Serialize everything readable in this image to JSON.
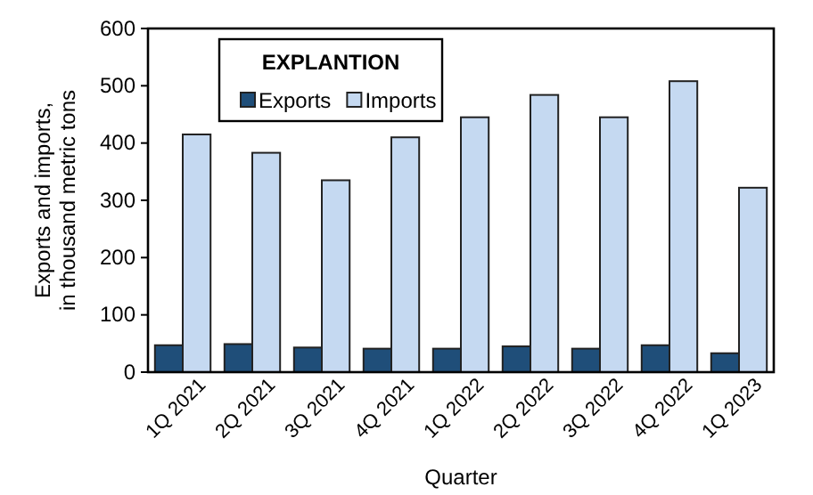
{
  "chart_data": {
    "type": "bar",
    "xlabel": "Quarter",
    "ylabel": "Exports and imports,\nin thousand metric tons",
    "legend_title": "EXPLANTION",
    "legend": "top left",
    "categories": [
      "1Q 2021",
      "2Q 2021",
      "3Q 2021",
      "4Q 2021",
      "1Q 2022",
      "2Q 2022",
      "3Q 2022",
      "4Q 2022",
      "1Q 2023"
    ],
    "series": [
      {
        "name": "Exports",
        "color": "#1f4e79",
        "values": [
          47,
          49,
          43,
          41,
          41,
          45,
          41,
          47,
          33
        ]
      },
      {
        "name": "Imports",
        "color": "#c5d9f1",
        "values": [
          415,
          383,
          335,
          410,
          445,
          484,
          445,
          508,
          322
        ]
      }
    ],
    "ylim": [
      0,
      600
    ],
    "yticks": [
      0,
      100,
      200,
      300,
      400,
      500,
      600
    ],
    "grid": false
  }
}
